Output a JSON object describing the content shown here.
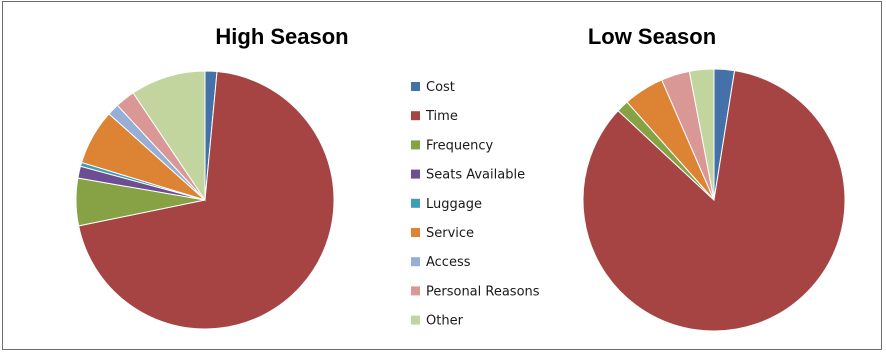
{
  "chart_data": [
    {
      "type": "pie",
      "title": "High Season",
      "categories": [
        "Cost",
        "Time",
        "Frequency",
        "Seats Available",
        "Luggage",
        "Service",
        "Access",
        "Personal Reasons",
        "Other"
      ],
      "values": [
        1.5,
        71,
        6,
        1.5,
        0.5,
        7,
        1.5,
        2.5,
        9.5
      ],
      "start_angle_deg": 0,
      "direction": "clockwise"
    },
    {
      "type": "pie",
      "title": "Low Season",
      "categories": [
        "Cost",
        "Time",
        "Frequency",
        "Seats Available",
        "Luggage",
        "Service",
        "Access",
        "Personal Reasons",
        "Other"
      ],
      "values": [
        2.5,
        84,
        1.5,
        0,
        0,
        5,
        0,
        3.5,
        3.0
      ],
      "start_angle_deg": 0,
      "direction": "clockwise"
    }
  ],
  "legend": {
    "placement": "center",
    "items": [
      {
        "label": "Cost",
        "color": "#4472A8"
      },
      {
        "label": "Time",
        "color": "#A64444"
      },
      {
        "label": "Frequency",
        "color": "#86A244"
      },
      {
        "label": "Seats Available",
        "color": "#6E4E92"
      },
      {
        "label": "Luggage",
        "color": "#3F9DB5"
      },
      {
        "label": "Service",
        "color": "#DC8434"
      },
      {
        "label": "Access",
        "color": "#97AED6"
      },
      {
        "label": "Personal Reasons",
        "color": "#D99796"
      },
      {
        "label": "Other",
        "color": "#C3D59E"
      }
    ]
  }
}
